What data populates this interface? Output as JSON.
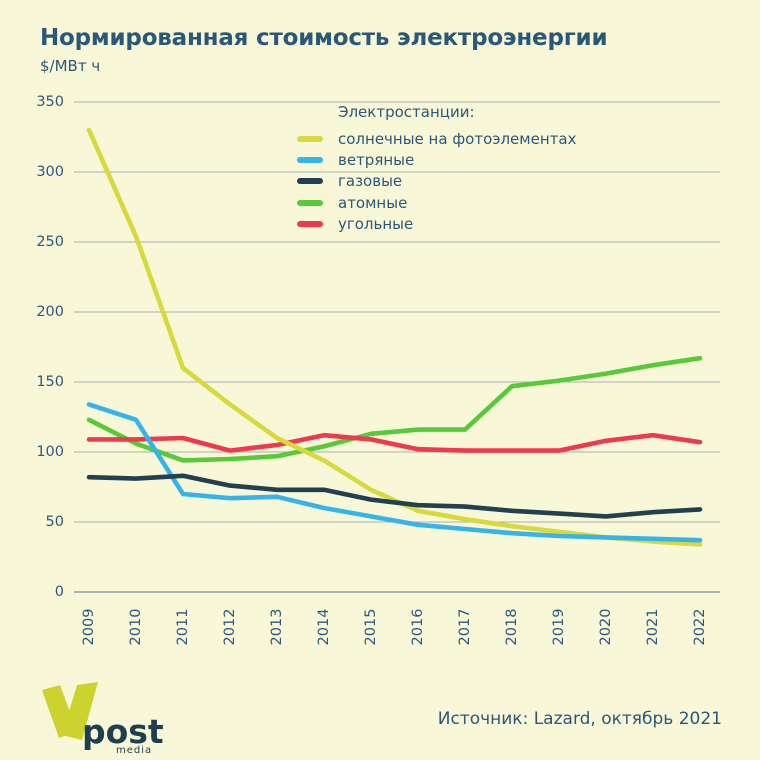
{
  "title": "Нормированная стоимость электроэнергии",
  "subtitle": "$/МВт ч",
  "source": "Источник: Lazard, октябрь 2021",
  "logo": {
    "text": "post",
    "sub": "media"
  },
  "legend": {
    "title": "Электростанции:"
  },
  "colors": {
    "background": "#f8f8d9",
    "text": "#2a5878",
    "grid": "#a6b1b2",
    "axis": "#8fa0a8",
    "logo_v": "#ccd22e"
  },
  "chart_data": {
    "type": "line",
    "title": "Нормированная стоимость электроэнергии",
    "ylabel": "$/МВт ч",
    "xlabel": "",
    "grid": true,
    "legend_position": "top-center",
    "ylim": [
      0,
      350
    ],
    "yticks": [
      0,
      50,
      100,
      150,
      200,
      250,
      300,
      350
    ],
    "x": [
      "2009",
      "2010",
      "2011",
      "2012",
      "2013",
      "2014",
      "2015",
      "2016",
      "2017",
      "2018",
      "2019",
      "2020",
      "2021",
      "2022"
    ],
    "series": [
      {
        "id": "solar-pv",
        "name": "солнечные на фотоэлементах",
        "color": "#d7d93c",
        "values": [
          330,
          254,
          160,
          134,
          110,
          94,
          73,
          58,
          52,
          47,
          43,
          39,
          36,
          34
        ]
      },
      {
        "id": "wind",
        "name": "ветряные",
        "color": "#35b4e9",
        "values": [
          134,
          123,
          70,
          67,
          68,
          60,
          54,
          48,
          45,
          42,
          40,
          39,
          38,
          37
        ]
      },
      {
        "id": "gas",
        "name": "газовые",
        "color": "#22404f",
        "values": [
          82,
          81,
          83,
          76,
          73,
          73,
          66,
          62,
          61,
          58,
          56,
          54,
          57,
          59
        ]
      },
      {
        "id": "nuclear",
        "name": "атомные",
        "color": "#58c938",
        "values": [
          123,
          106,
          94,
          95,
          97,
          104,
          113,
          116,
          116,
          147,
          151,
          156,
          162,
          167
        ]
      },
      {
        "id": "coal",
        "name": "угольные",
        "color": "#ee3a4e",
        "values": [
          109,
          109,
          110,
          101,
          105,
          112,
          109,
          102,
          101,
          101,
          101,
          108,
          112,
          107
        ]
      }
    ]
  }
}
